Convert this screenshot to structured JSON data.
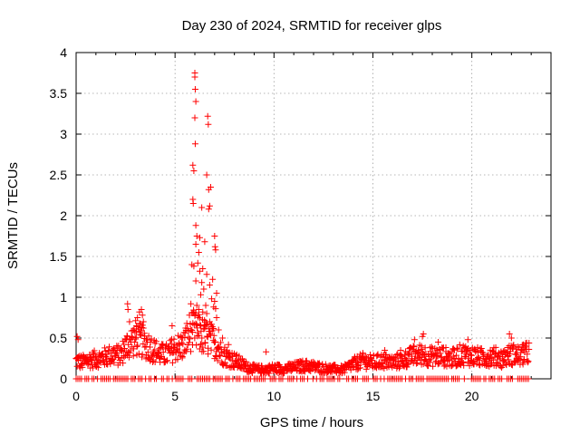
{
  "chart_data": {
    "type": "scatter",
    "title": "Day 230 of 2024, SRMTID for receiver glps",
    "xlabel": "GPS time / hours",
    "ylabel": "SRMTID / TECUs",
    "xlim": [
      0,
      24
    ],
    "ylim": [
      0,
      4
    ],
    "x_ticks": [
      0,
      5,
      10,
      15,
      20
    ],
    "x_tick_labels": [
      "0",
      "5",
      "10",
      "15",
      "20"
    ],
    "y_ticks": [
      0,
      0.5,
      1,
      1.5,
      2,
      2.5,
      3,
      3.5,
      4
    ],
    "y_tick_labels": [
      "0",
      "0.5",
      "1",
      "1.5",
      "2",
      "2.5",
      "3",
      "3.5",
      "4"
    ],
    "grid": true,
    "marker": "+",
    "series": [
      {
        "name": "SRMTID",
        "color": "#ff0000",
        "peak_points": [
          {
            "x": 6.0,
            "y": 3.75
          },
          {
            "x": 6.0,
            "y": 3.7
          },
          {
            "x": 6.02,
            "y": 3.55
          },
          {
            "x": 6.05,
            "y": 3.4
          },
          {
            "x": 6.0,
            "y": 3.2
          },
          {
            "x": 6.65,
            "y": 3.22
          },
          {
            "x": 6.68,
            "y": 3.12
          },
          {
            "x": 6.02,
            "y": 2.88
          },
          {
            "x": 5.9,
            "y": 2.62
          },
          {
            "x": 5.95,
            "y": 2.55
          },
          {
            "x": 6.6,
            "y": 2.5
          },
          {
            "x": 6.8,
            "y": 2.35
          },
          {
            "x": 6.7,
            "y": 2.32
          },
          {
            "x": 5.9,
            "y": 2.2
          },
          {
            "x": 5.92,
            "y": 2.15
          },
          {
            "x": 6.35,
            "y": 2.1
          },
          {
            "x": 6.75,
            "y": 2.12
          },
          {
            "x": 6.7,
            "y": 2.08
          },
          {
            "x": 6.05,
            "y": 1.88
          },
          {
            "x": 6.1,
            "y": 1.75
          },
          {
            "x": 6.25,
            "y": 1.73
          },
          {
            "x": 7.0,
            "y": 1.75
          },
          {
            "x": 6.5,
            "y": 1.68
          },
          {
            "x": 6.05,
            "y": 1.65
          },
          {
            "x": 7.02,
            "y": 1.62
          },
          {
            "x": 7.05,
            "y": 1.58
          },
          {
            "x": 6.2,
            "y": 1.55
          },
          {
            "x": 6.15,
            "y": 1.42
          },
          {
            "x": 5.85,
            "y": 1.4
          },
          {
            "x": 5.95,
            "y": 1.38
          },
          {
            "x": 6.4,
            "y": 1.35
          },
          {
            "x": 6.25,
            "y": 1.32
          },
          {
            "x": 6.6,
            "y": 1.28
          },
          {
            "x": 6.05,
            "y": 1.2
          },
          {
            "x": 6.9,
            "y": 1.22
          },
          {
            "x": 6.35,
            "y": 1.18
          },
          {
            "x": 6.75,
            "y": 1.15
          },
          {
            "x": 6.45,
            "y": 1.1
          },
          {
            "x": 7.1,
            "y": 1.05
          },
          {
            "x": 6.3,
            "y": 1.03
          },
          {
            "x": 6.85,
            "y": 0.98
          },
          {
            "x": 7.0,
            "y": 0.95
          },
          {
            "x": 5.8,
            "y": 0.92
          },
          {
            "x": 6.1,
            "y": 0.9
          },
          {
            "x": 6.55,
            "y": 0.9
          },
          {
            "x": 6.95,
            "y": 0.88
          },
          {
            "x": 7.05,
            "y": 0.86
          },
          {
            "x": 6.2,
            "y": 0.85
          },
          {
            "x": 6.4,
            "y": 0.82
          },
          {
            "x": 6.6,
            "y": 0.8
          },
          {
            "x": 6.0,
            "y": 0.78
          },
          {
            "x": 7.1,
            "y": 0.75
          },
          {
            "x": 6.75,
            "y": 0.7
          },
          {
            "x": 5.9,
            "y": 0.68
          },
          {
            "x": 6.3,
            "y": 0.65
          },
          {
            "x": 6.5,
            "y": 0.62
          },
          {
            "x": 7.2,
            "y": 0.6
          },
          {
            "x": 2.6,
            "y": 0.92
          },
          {
            "x": 2.62,
            "y": 0.85
          },
          {
            "x": 3.3,
            "y": 0.85
          },
          {
            "x": 3.2,
            "y": 0.82
          },
          {
            "x": 3.35,
            "y": 0.78
          },
          {
            "x": 3.1,
            "y": 0.75
          },
          {
            "x": 3.4,
            "y": 0.7
          },
          {
            "x": 2.7,
            "y": 0.7
          },
          {
            "x": 4.85,
            "y": 0.65
          },
          {
            "x": 3.05,
            "y": 0.65
          },
          {
            "x": 7.4,
            "y": 0.5
          },
          {
            "x": 7.7,
            "y": 0.42
          },
          {
            "x": 0.05,
            "y": 0.52
          },
          {
            "x": 0.1,
            "y": 0.48
          },
          {
            "x": 17.1,
            "y": 0.48
          },
          {
            "x": 17.5,
            "y": 0.52
          },
          {
            "x": 17.55,
            "y": 0.55
          },
          {
            "x": 18.3,
            "y": 0.45
          },
          {
            "x": 19.8,
            "y": 0.48
          },
          {
            "x": 21.9,
            "y": 0.55
          },
          {
            "x": 22.0,
            "y": 0.5
          },
          {
            "x": 22.6,
            "y": 0.42
          },
          {
            "x": 22.7,
            "y": 0.4
          },
          {
            "x": 9.6,
            "y": 0.33
          },
          {
            "x": 14.5,
            "y": 0.3
          },
          {
            "x": 15.6,
            "y": 0.35
          },
          {
            "x": 16.4,
            "y": 0.35
          }
        ],
        "baseline_profile": [
          {
            "x": 0.0,
            "y": 0.22
          },
          {
            "x": 0.3,
            "y": 0.2
          },
          {
            "x": 0.6,
            "y": 0.23
          },
          {
            "x": 1.0,
            "y": 0.24
          },
          {
            "x": 1.5,
            "y": 0.27
          },
          {
            "x": 1.9,
            "y": 0.3
          },
          {
            "x": 2.2,
            "y": 0.28
          },
          {
            "x": 2.6,
            "y": 0.42
          },
          {
            "x": 3.0,
            "y": 0.5
          },
          {
            "x": 3.4,
            "y": 0.45
          },
          {
            "x": 3.8,
            "y": 0.38
          },
          {
            "x": 4.2,
            "y": 0.3
          },
          {
            "x": 4.6,
            "y": 0.3
          },
          {
            "x": 5.0,
            "y": 0.38
          },
          {
            "x": 5.4,
            "y": 0.4
          },
          {
            "x": 5.8,
            "y": 0.6
          },
          {
            "x": 6.2,
            "y": 0.55
          },
          {
            "x": 6.6,
            "y": 0.5
          },
          {
            "x": 7.0,
            "y": 0.45
          },
          {
            "x": 7.4,
            "y": 0.3
          },
          {
            "x": 7.8,
            "y": 0.25
          },
          {
            "x": 8.2,
            "y": 0.2
          },
          {
            "x": 8.6,
            "y": 0.15
          },
          {
            "x": 9.0,
            "y": 0.12
          },
          {
            "x": 9.5,
            "y": 0.11
          },
          {
            "x": 10.0,
            "y": 0.13
          },
          {
            "x": 10.5,
            "y": 0.12
          },
          {
            "x": 11.0,
            "y": 0.14
          },
          {
            "x": 11.5,
            "y": 0.16
          },
          {
            "x": 12.0,
            "y": 0.15
          },
          {
            "x": 12.5,
            "y": 0.13
          },
          {
            "x": 13.0,
            "y": 0.12
          },
          {
            "x": 13.5,
            "y": 0.11
          },
          {
            "x": 14.0,
            "y": 0.18
          },
          {
            "x": 14.5,
            "y": 0.22
          },
          {
            "x": 15.0,
            "y": 0.2
          },
          {
            "x": 15.5,
            "y": 0.22
          },
          {
            "x": 16.0,
            "y": 0.2
          },
          {
            "x": 16.5,
            "y": 0.23
          },
          {
            "x": 17.0,
            "y": 0.28
          },
          {
            "x": 17.5,
            "y": 0.3
          },
          {
            "x": 18.0,
            "y": 0.27
          },
          {
            "x": 18.5,
            "y": 0.28
          },
          {
            "x": 19.0,
            "y": 0.25
          },
          {
            "x": 19.5,
            "y": 0.3
          },
          {
            "x": 20.0,
            "y": 0.28
          },
          {
            "x": 20.5,
            "y": 0.26
          },
          {
            "x": 21.0,
            "y": 0.28
          },
          {
            "x": 21.5,
            "y": 0.25
          },
          {
            "x": 22.0,
            "y": 0.3
          },
          {
            "x": 22.5,
            "y": 0.28
          },
          {
            "x": 22.9,
            "y": 0.33
          }
        ],
        "zero_row_x_range": [
          0,
          22.9
        ]
      }
    ]
  }
}
